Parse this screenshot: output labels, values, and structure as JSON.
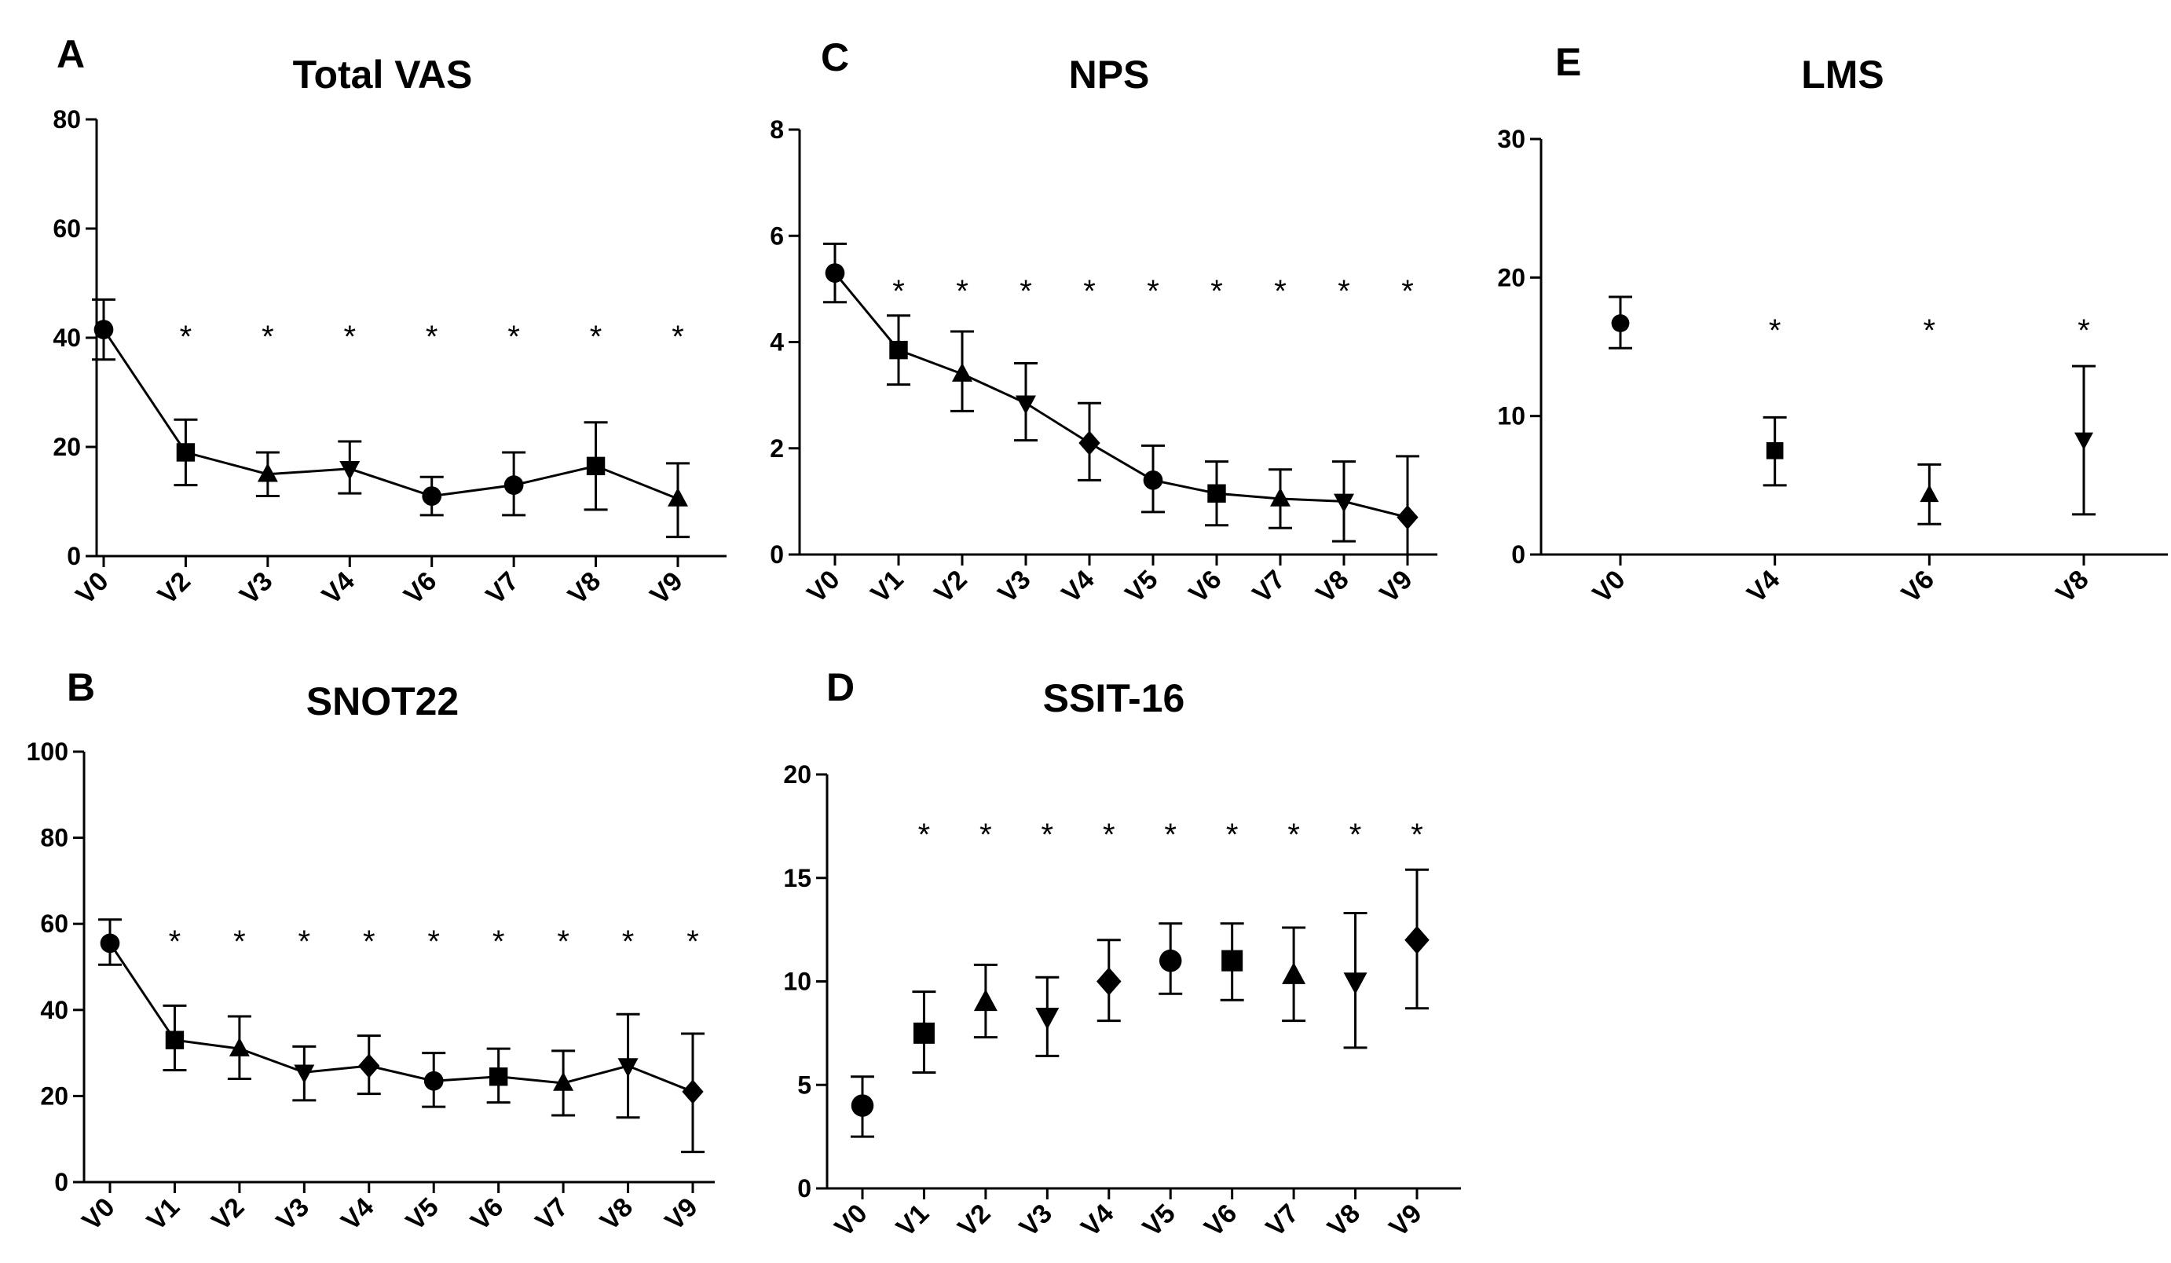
{
  "chart_data": [
    {
      "panel": "A",
      "title": "Total VAS",
      "type": "line",
      "connected": true,
      "categories": [
        "V0",
        "V2",
        "V3",
        "V4",
        "V6",
        "V7",
        "V8",
        "V9"
      ],
      "values": [
        41.5,
        19,
        15,
        16,
        11,
        13,
        16.5,
        10.5
      ],
      "err_low": [
        36,
        13,
        11,
        11.5,
        7.5,
        7.5,
        8.5,
        3.5
      ],
      "err_high": [
        47,
        25,
        19,
        21,
        14.5,
        19,
        24.5,
        17
      ],
      "markers": [
        "circle",
        "square",
        "triangle-up",
        "triangle-down",
        "circle",
        "circle",
        "square",
        "triangle-up"
      ],
      "significance": [
        false,
        true,
        true,
        true,
        true,
        true,
        true,
        true
      ],
      "ylim": [
        0,
        80
      ],
      "yticks": [
        0,
        20,
        40,
        60,
        80
      ]
    },
    {
      "panel": "B",
      "title": "SNOT22",
      "type": "line",
      "connected": true,
      "categories": [
        "V0",
        "V1",
        "V2",
        "V3",
        "V4",
        "V5",
        "V6",
        "V7",
        "V8",
        "V9"
      ],
      "values": [
        55.5,
        33,
        31,
        25.5,
        27,
        23.5,
        24.5,
        23,
        27,
        21
      ],
      "err_low": [
        50.5,
        26,
        24,
        19,
        20.5,
        17.5,
        18.5,
        15.5,
        15,
        7
      ],
      "err_high": [
        61,
        41,
        38.5,
        31.5,
        34,
        30,
        31,
        30.5,
        39,
        34.5
      ],
      "markers": [
        "circle",
        "square",
        "triangle-up",
        "triangle-down",
        "diamond",
        "circle",
        "square",
        "triangle-up",
        "triangle-down",
        "diamond"
      ],
      "significance": [
        false,
        true,
        true,
        true,
        true,
        true,
        true,
        true,
        true,
        true
      ],
      "ylim": [
        0,
        100
      ],
      "yticks": [
        0,
        20,
        40,
        60,
        80,
        100
      ]
    },
    {
      "panel": "C",
      "title": "NPS",
      "type": "line",
      "connected": true,
      "categories": [
        "V0",
        "V1",
        "V2",
        "V3",
        "V4",
        "V5",
        "V6",
        "V7",
        "V8",
        "V9"
      ],
      "values": [
        5.3,
        3.85,
        3.4,
        2.85,
        2.1,
        1.4,
        1.15,
        1.05,
        1.0,
        0.7
      ],
      "err_low": [
        4.75,
        3.2,
        2.7,
        2.15,
        1.4,
        0.8,
        0.55,
        0.5,
        0.25,
        0.0
      ],
      "err_high": [
        5.85,
        4.5,
        4.2,
        3.6,
        2.85,
        2.05,
        1.75,
        1.6,
        1.75,
        1.85
      ],
      "markers": [
        "circle",
        "square",
        "triangle-up",
        "triangle-down",
        "diamond",
        "circle",
        "square",
        "triangle-up",
        "triangle-down",
        "diamond"
      ],
      "significance": [
        false,
        true,
        true,
        true,
        true,
        true,
        true,
        true,
        true,
        true
      ],
      "ylim": [
        0,
        8
      ],
      "yticks": [
        0,
        2,
        4,
        6,
        8
      ]
    },
    {
      "panel": "D",
      "title": "SSIT-16",
      "type": "scatter",
      "connected": false,
      "categories": [
        "V0",
        "V1",
        "V2",
        "V3",
        "V4",
        "V5",
        "V6",
        "V7",
        "V8",
        "V9"
      ],
      "values": [
        4,
        7.5,
        9,
        8.3,
        10,
        11,
        11,
        10.3,
        10,
        12
      ],
      "err_low": [
        2.5,
        5.6,
        7.3,
        6.4,
        8.1,
        9.4,
        9.1,
        8.1,
        6.8,
        8.7
      ],
      "err_high": [
        5.4,
        9.5,
        10.8,
        10.2,
        12,
        12.8,
        12.8,
        12.6,
        13.3,
        15.4
      ],
      "markers": [
        "circle",
        "square",
        "triangle-up",
        "triangle-down",
        "diamond",
        "circle",
        "square",
        "triangle-up",
        "triangle-down",
        "diamond"
      ],
      "significance": [
        false,
        true,
        true,
        true,
        true,
        true,
        true,
        true,
        true,
        true
      ],
      "ylim": [
        0,
        20
      ],
      "yticks": [
        0,
        5,
        10,
        15,
        20
      ]
    },
    {
      "panel": "E",
      "title": "LMS",
      "type": "scatter",
      "connected": false,
      "categories": [
        "V0",
        "V4",
        "V6",
        "V8"
      ],
      "values": [
        16.7,
        7.5,
        4.3,
        8.3
      ],
      "err_low": [
        14.9,
        5.0,
        2.2,
        2.9
      ],
      "err_high": [
        18.6,
        9.9,
        6.5,
        13.6
      ],
      "markers": [
        "circle",
        "square",
        "triangle-up",
        "triangle-down"
      ],
      "significance": [
        false,
        true,
        true,
        true
      ],
      "ylim": [
        0,
        30
      ],
      "yticks": [
        0,
        10,
        20,
        30
      ]
    }
  ],
  "significance_mark": "*"
}
